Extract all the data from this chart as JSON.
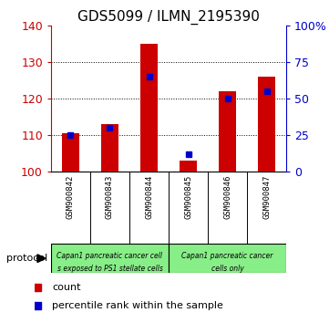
{
  "title": "GDS5099 / ILMN_2195390",
  "samples": [
    "GSM900842",
    "GSM900843",
    "GSM900844",
    "GSM900845",
    "GSM900846",
    "GSM900847"
  ],
  "counts": [
    110.5,
    113.0,
    135.0,
    103.0,
    122.0,
    126.0
  ],
  "percentile_ranks": [
    25,
    30,
    65,
    12,
    50,
    55
  ],
  "ylim_left": [
    100,
    140
  ],
  "ylim_right": [
    0,
    100
  ],
  "yticks_left": [
    100,
    110,
    120,
    130,
    140
  ],
  "yticks_right": [
    0,
    25,
    50,
    75,
    100
  ],
  "yticklabels_right": [
    "0",
    "25",
    "50",
    "75",
    "100%"
  ],
  "bar_color": "#cc0000",
  "dot_color": "#0000cc",
  "bg_gray": "#c8c8c8",
  "bg_green": "#88ee88",
  "protocol_text0a": "Capan1 pancreatic cancer cell",
  "protocol_text0b": "s exposed to PS1 stellate cells",
  "protocol_text1a": "Capan1 pancreatic cancer",
  "protocol_text1b": "cells only",
  "protocol_label": "protocol",
  "legend_count_label": "count",
  "legend_percentile_label": "percentile rank within the sample",
  "axis_left_color": "#cc0000",
  "axis_right_color": "#0000cc",
  "title_fontsize": 11
}
